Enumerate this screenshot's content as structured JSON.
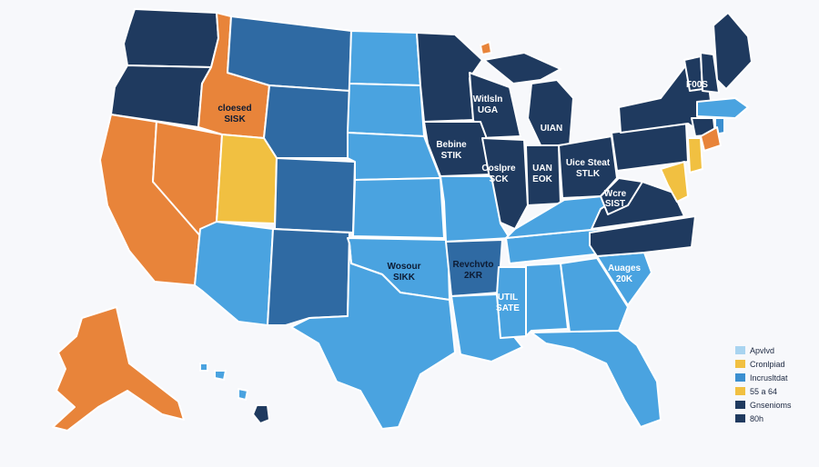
{
  "colors": {
    "navy": "#1f3a5f",
    "steel": "#2f6aa3",
    "mid_blue": "#3b8fd0",
    "sky": "#4aa3e0",
    "orange": "#e8843a",
    "yellow": "#f1c041",
    "light_blue": "#a9d4f0"
  },
  "map": {
    "labels": [
      {
        "id": "id-label",
        "line1": "cloesed",
        "line2": "SISK"
      },
      {
        "id": "wi-label",
        "line1": "Witlsln",
        "line2": "UGA"
      },
      {
        "id": "mi-label",
        "line1": "UIAN",
        "line2": ""
      },
      {
        "id": "ia-label",
        "line1": "Bebine",
        "line2": "STIK"
      },
      {
        "id": "il-label",
        "line1": "Coslpre",
        "line2": "SCK"
      },
      {
        "id": "in-label",
        "line1": "UAN",
        "line2": "EOK"
      },
      {
        "id": "oh-label",
        "line1": "Uice Steat",
        "line2": "STLK"
      },
      {
        "id": "wv-label",
        "line1": "Wcre",
        "line2": "SIST"
      },
      {
        "id": "ne-label",
        "line1": "F00S",
        "line2": ""
      },
      {
        "id": "ok-label",
        "line1": "Wosour",
        "line2": "SIKK"
      },
      {
        "id": "ar-label",
        "line1": "Revchvto",
        "line2": "2KR"
      },
      {
        "id": "ms-label",
        "line1": "UTIL",
        "line2": "SATE"
      },
      {
        "id": "sc-label",
        "line1": "Auages",
        "line2": "20K"
      }
    ]
  },
  "legend": {
    "items": [
      {
        "label": "Apvlvd",
        "color": "#a9d4f0"
      },
      {
        "label": "Cronlpiad",
        "color": "#f1c041"
      },
      {
        "label": "Incrusltdat",
        "color": "#3b8fd0"
      },
      {
        "label": "55 a 64",
        "color": "#f1c041"
      },
      {
        "label": "Gnsenioms",
        "color": "#1f3a5f"
      },
      {
        "label": "80h",
        "color": "#1f3a5f"
      }
    ]
  }
}
